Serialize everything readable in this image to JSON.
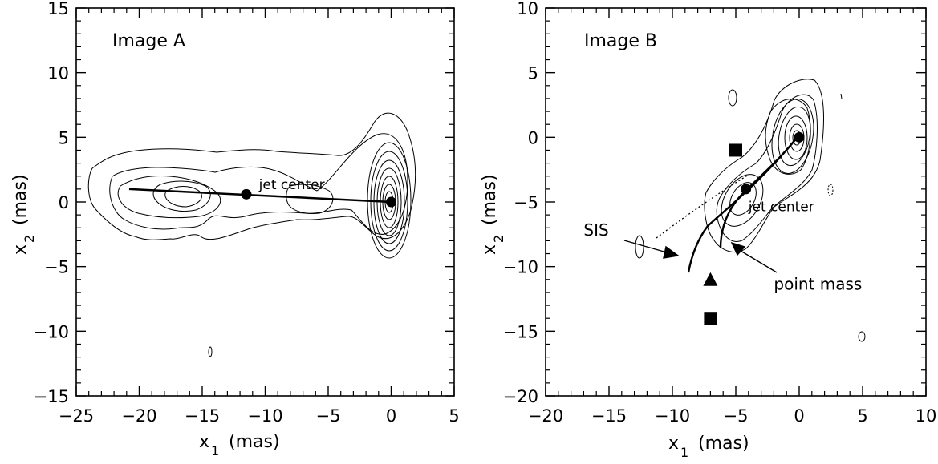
{
  "chart_data": [
    {
      "type": "contour",
      "title": "Image A",
      "xlabel": "x",
      "xlabel_sub": "1",
      "xlabel_unit": "(mas)",
      "ylabel": "x",
      "ylabel_sub": "2",
      "ylabel_unit": "(mas)",
      "xlim": [
        -25,
        5
      ],
      "ylim": [
        -15,
        15
      ],
      "xticks": [
        -25,
        -20,
        -15,
        -10,
        -5,
        0,
        5
      ],
      "yticks": [
        -15,
        -10,
        -5,
        0,
        5,
        10,
        15
      ],
      "markers": [
        {
          "shape": "circle",
          "x": 0,
          "y": 0
        },
        {
          "shape": "circle",
          "x": -11.5,
          "y": 0.6
        }
      ],
      "jet_line": [
        [
          -20.8,
          1.0
        ],
        [
          0,
          0
        ]
      ],
      "annotations": [
        {
          "text": "jet center",
          "x": -10.5,
          "y": 1.0
        }
      ]
    },
    {
      "type": "contour",
      "title": "Image B",
      "xlabel": "x",
      "xlabel_sub": "1",
      "xlabel_unit": "(mas)",
      "ylabel": "x",
      "ylabel_sub": "2",
      "ylabel_unit": "(mas)",
      "xlim": [
        -20,
        10
      ],
      "ylim": [
        -20,
        10
      ],
      "xticks": [
        -20,
        -15,
        -10,
        -5,
        0,
        5,
        10
      ],
      "yticks": [
        -20,
        -15,
        -10,
        -5,
        0,
        5,
        10
      ],
      "markers": [
        {
          "shape": "circle",
          "x": 0,
          "y": 0
        },
        {
          "shape": "circle",
          "x": -4.2,
          "y": -4.0
        },
        {
          "shape": "square",
          "x": -5.0,
          "y": -1.0
        },
        {
          "shape": "triangle",
          "x": -7.0,
          "y": -11.0
        },
        {
          "shape": "square",
          "x": -7.0,
          "y": -14.0
        }
      ],
      "annotations": [
        {
          "text": "jet center",
          "x": -4.0,
          "y": -5.7
        },
        {
          "text": "SIS",
          "x": -17.0,
          "y": -7.6
        },
        {
          "text": "point mass",
          "x": -2.0,
          "y": -11.8
        }
      ]
    }
  ]
}
